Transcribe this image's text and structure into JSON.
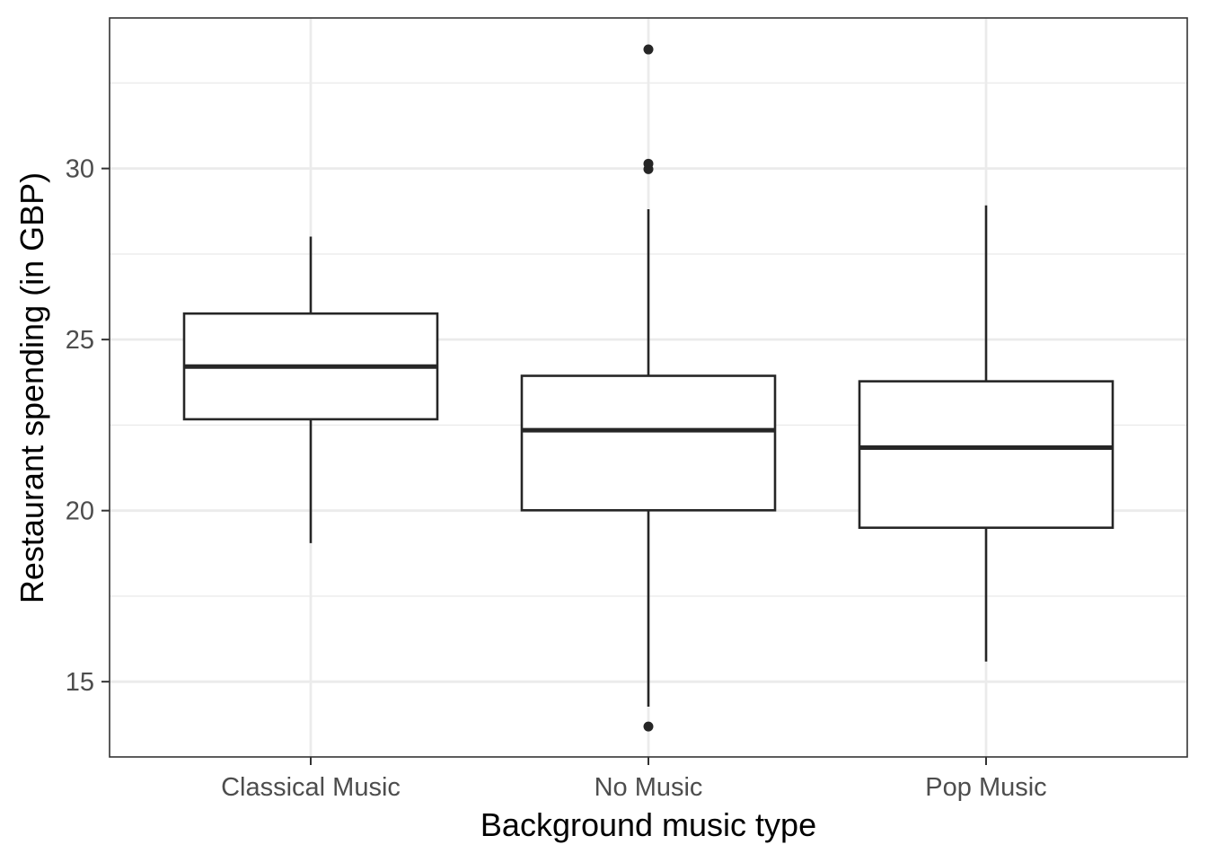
{
  "chart_data": {
    "type": "boxplot",
    "title": "",
    "xlabel": "Background music type",
    "ylabel": "Restaurant spending (in GBP)",
    "categories": [
      "Classical Music",
      "No Music",
      "Pop Music"
    ],
    "ylim": [
      12.8,
      34.4
    ],
    "yticks": [
      15,
      20,
      25,
      30
    ],
    "ytick_labels": [
      "15",
      "20",
      "25",
      "30"
    ],
    "grid": true,
    "legend": "none",
    "boxes": [
      {
        "category": "Classical Music",
        "whisker_low": 19.05,
        "q1": 22.67,
        "median": 24.21,
        "q3": 25.76,
        "whisker_high": 28.01,
        "outliers": []
      },
      {
        "category": "No Music",
        "whisker_low": 14.27,
        "q1": 20.01,
        "median": 22.35,
        "q3": 23.94,
        "whisker_high": 28.81,
        "outliers": [
          13.69,
          29.98,
          30.14,
          33.48
        ]
      },
      {
        "category": "Pop Music",
        "whisker_low": 15.59,
        "q1": 19.5,
        "median": 21.84,
        "q3": 23.78,
        "whisker_high": 28.92,
        "outliers": []
      }
    ],
    "colors": {
      "box_stroke": "#262626",
      "box_fill": "#ffffff",
      "grid": "#ebebeb",
      "panel_border": "#333333",
      "tick_text": "#4d4d4d",
      "axis_text": "#000000"
    }
  }
}
